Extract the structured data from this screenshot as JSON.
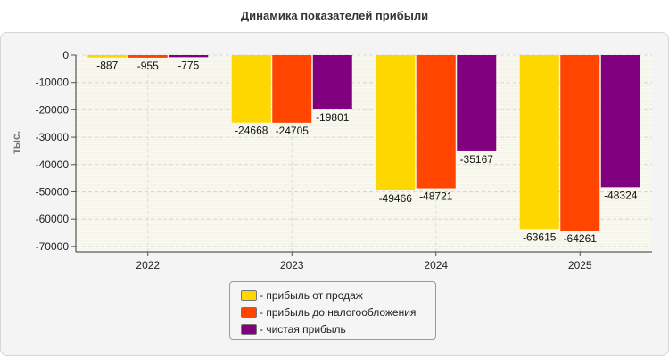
{
  "chart_data": {
    "type": "bar",
    "title": "Динамика показателей прибыли",
    "ylabel": "тыс.",
    "xlabel": "",
    "categories": [
      "2022",
      "2023",
      "2024",
      "2025"
    ],
    "ylim": [
      -72000,
      0
    ],
    "yticks": [
      0,
      -10000,
      -20000,
      -30000,
      -40000,
      -50000,
      -60000,
      -70000
    ],
    "grid": true,
    "legend_position": "bottom-center",
    "series": [
      {
        "name": "прибыль от продаж",
        "color": "#FFD700",
        "values": [
          -887,
          -24668,
          -49466,
          -63615
        ]
      },
      {
        "name": "прибыль до налогообложения",
        "color": "#FF4500",
        "values": [
          -955,
          -24705,
          -48721,
          -64261
        ]
      },
      {
        "name": "чистая прибыль",
        "color": "#800080",
        "values": [
          -775,
          -19801,
          -35167,
          -48324
        ]
      }
    ]
  },
  "legend": {
    "items": [
      {
        "label": "- прибыль от продаж"
      },
      {
        "label": "- прибыль до налогообложения"
      },
      {
        "label": "- чистая прибыль"
      }
    ]
  }
}
